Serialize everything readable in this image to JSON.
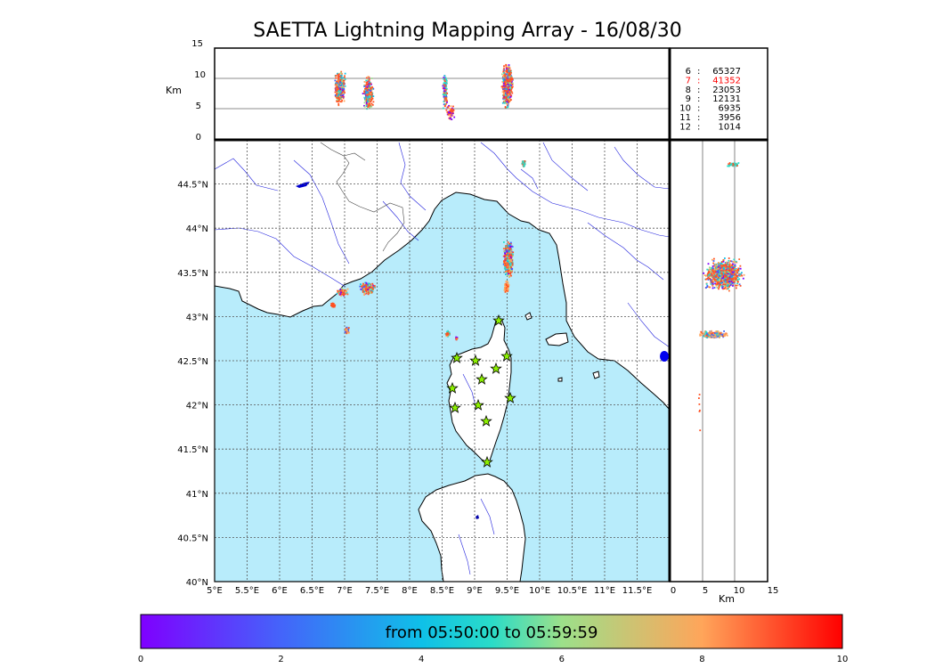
{
  "title": "SAETTA Lightning Mapping Array - 16/08/30",
  "alt_panel": {
    "unit": "Km",
    "ticks": [
      "0",
      "5",
      "10",
      "15"
    ]
  },
  "side_panel": {
    "unit": "Km",
    "ticks": [
      "0",
      "5",
      "10",
      "15"
    ]
  },
  "counts": [
    {
      "key": "6",
      "value": "65327",
      "color": "#000000"
    },
    {
      "key": "7",
      "value": "41352",
      "color": "#ff0000"
    },
    {
      "key": "8",
      "value": "23053",
      "color": "#000000"
    },
    {
      "key": "9",
      "value": "12131",
      "color": "#000000"
    },
    {
      "key": "10",
      "value": "6935",
      "color": "#000000"
    },
    {
      "key": "11",
      "value": "3956",
      "color": "#000000"
    },
    {
      "key": "12",
      "value": "1014",
      "color": "#000000"
    }
  ],
  "map": {
    "lon_ticks": [
      "5°E",
      "5.5°E",
      "6°E",
      "6.5°E",
      "7°E",
      "7.5°E",
      "8°E",
      "8.5°E",
      "9°E",
      "9.5°E",
      "10°E",
      "10.5°E",
      "11°E",
      "11.5°E"
    ],
    "lat_ticks": [
      "40°N",
      "40.5°N",
      "41°N",
      "41.5°N",
      "42°N",
      "42.5°N",
      "43°N",
      "43.5°N",
      "44°N",
      "44.5°N"
    ],
    "sea_color": "#b8ecfb",
    "station_color": "#8cf000"
  },
  "colorbar": {
    "label": "from 05:50:00 to 05:59:59",
    "ticks": [
      "0",
      "2",
      "4",
      "6",
      "8",
      "10"
    ]
  }
}
